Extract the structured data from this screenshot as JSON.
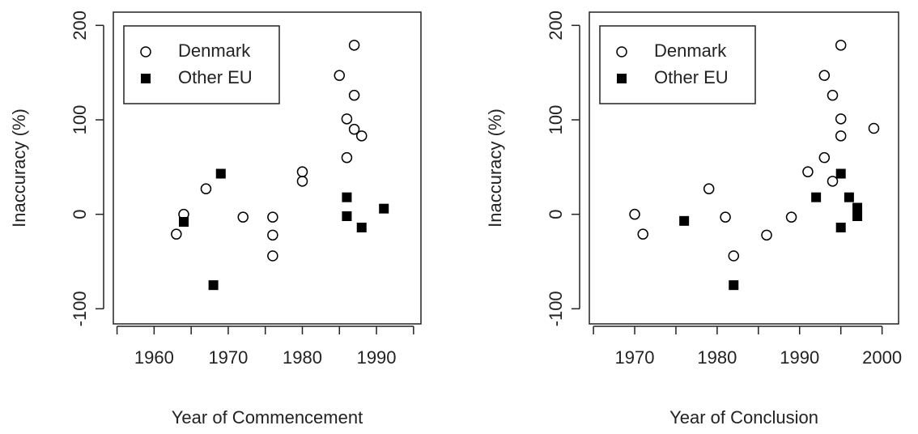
{
  "chart_data": [
    {
      "type": "scatter",
      "xlabel": "Year of Commencement",
      "ylabel": "Inaccuracy (%)",
      "xlim": [
        1954.5,
        1996
      ],
      "xticks": [
        1960,
        1970,
        1980,
        1990
      ],
      "xminorticks": [
        1955,
        1965,
        1975,
        1985,
        1995
      ],
      "ylim": [
        -116,
        214
      ],
      "yticks": [
        -100,
        0,
        100,
        200
      ],
      "legend": "top-left",
      "series": [
        {
          "name": "Denmark",
          "color": "#000000",
          "marker": "circle-open",
          "x": [
            1963,
            1964,
            1967,
            1972,
            1976,
            1976,
            1976,
            1980,
            1980,
            1985,
            1986,
            1986,
            1987,
            1987,
            1987,
            1988
          ],
          "values": [
            -21,
            0,
            27,
            -3,
            -3,
            -22,
            -44,
            45,
            35,
            147,
            101,
            60,
            179,
            126,
            90,
            83
          ]
        },
        {
          "name": "Other EU",
          "color": "#000000",
          "marker": "square-filled",
          "x": [
            1964,
            1968,
            1969,
            1986,
            1986,
            1988,
            1991
          ],
          "values": [
            -8,
            -75,
            43,
            18,
            -2,
            -14,
            6
          ]
        }
      ]
    },
    {
      "type": "scatter",
      "xlabel": "Year of Conclusion",
      "ylabel": "Inaccuracy (%)",
      "xlim": [
        1964.5,
        2002
      ],
      "xticks": [
        1970,
        1980,
        1990,
        2000
      ],
      "xminorticks": [
        1965,
        1975,
        1985,
        1995
      ],
      "ylim": [
        -116,
        214
      ],
      "yticks": [
        -100,
        0,
        100,
        200
      ],
      "legend": "top-left",
      "series": [
        {
          "name": "Denmark",
          "color": "#000000",
          "marker": "circle-open",
          "x": [
            1970,
            1971,
            1979,
            1981,
            1982,
            1986,
            1989,
            1991,
            1993,
            1993,
            1994,
            1994,
            1995,
            1995,
            1995,
            1999
          ],
          "values": [
            0,
            -21,
            27,
            -3,
            -44,
            -22,
            -3,
            45,
            60,
            147,
            126,
            35,
            179,
            101,
            83,
            91
          ]
        },
        {
          "name": "Other EU",
          "color": "#000000",
          "marker": "square-filled",
          "x": [
            1976,
            1982,
            1992,
            1995,
            1995,
            1996,
            1997,
            1997
          ],
          "values": [
            -7,
            -75,
            18,
            43,
            -14,
            18,
            7,
            -2
          ]
        }
      ]
    }
  ]
}
